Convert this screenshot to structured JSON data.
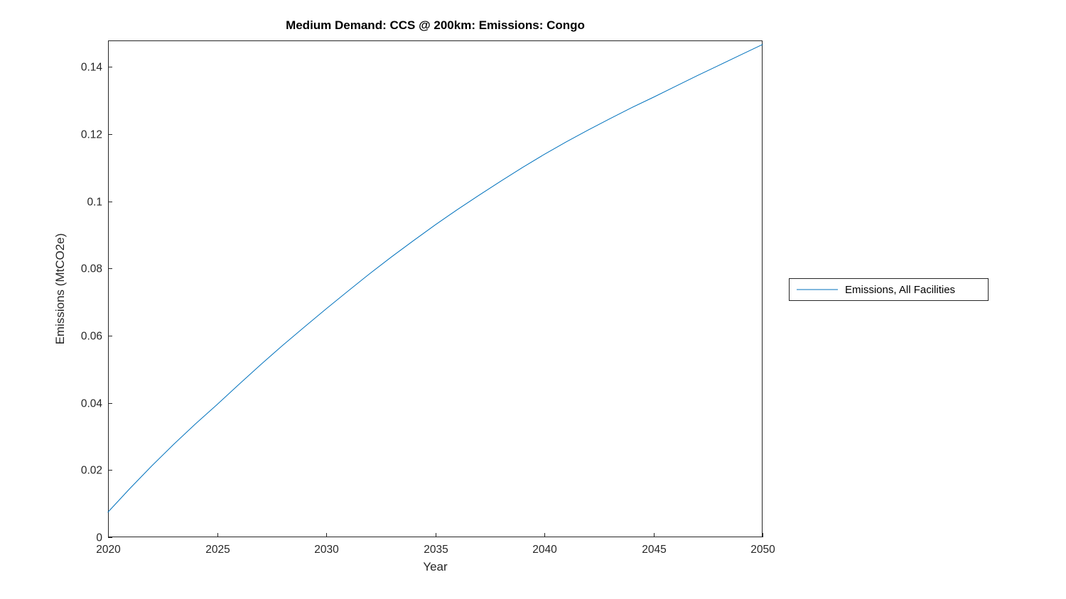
{
  "figure": {
    "title": "Medium Demand: CCS @ 200km: Emissions: Congo",
    "xlabel": "Year",
    "ylabel": "Emissions (MtCO2e)",
    "legend": {
      "entries": [
        {
          "label": "Emissions, All Facilities",
          "color": "#0072BD"
        }
      ],
      "position": "right-outside"
    }
  },
  "chart_data": {
    "type": "line",
    "title": "Medium Demand: CCS @ 200km: Emissions: Congo",
    "xlabel": "Year",
    "ylabel": "Emissions (MtCO2e)",
    "xlim": [
      2020,
      2050
    ],
    "ylim": [
      0,
      0.1479
    ],
    "xticks": [
      2020,
      2025,
      2030,
      2035,
      2040,
      2045,
      2050
    ],
    "xtick_labels": [
      "2020",
      "2025",
      "2030",
      "2035",
      "2040",
      "2045",
      "2050"
    ],
    "yticks": [
      0,
      0.02,
      0.04,
      0.06,
      0.08,
      0.1,
      0.12,
      0.14
    ],
    "ytick_labels": [
      "0",
      "0.02",
      "0.04",
      "0.06",
      "0.08",
      "0.1",
      "0.12",
      "0.14"
    ],
    "grid": false,
    "legend_position": "right-outside",
    "line_color": "#0072BD",
    "axis_color": "#262626",
    "series": [
      {
        "name": "Emissions, All Facilities",
        "x": [
          2020,
          2021,
          2022,
          2023,
          2024,
          2025,
          2026,
          2027,
          2028,
          2029,
          2030,
          2031,
          2032,
          2033,
          2034,
          2035,
          2036,
          2037,
          2038,
          2039,
          2040,
          2041,
          2042,
          2043,
          2044,
          2045,
          2046,
          2047,
          2048,
          2049,
          2050
        ],
        "values": [
          0.0075,
          0.0145,
          0.0212,
          0.0276,
          0.0337,
          0.0395,
          0.0455,
          0.0514,
          0.0571,
          0.0626,
          0.068,
          0.0733,
          0.0785,
          0.0835,
          0.0883,
          0.093,
          0.0975,
          0.1018,
          0.106,
          0.1101,
          0.114,
          0.1177,
          0.1212,
          0.1246,
          0.1279,
          0.131,
          0.1342,
          0.1374,
          0.1405,
          0.1436,
          0.1467
        ]
      }
    ]
  }
}
